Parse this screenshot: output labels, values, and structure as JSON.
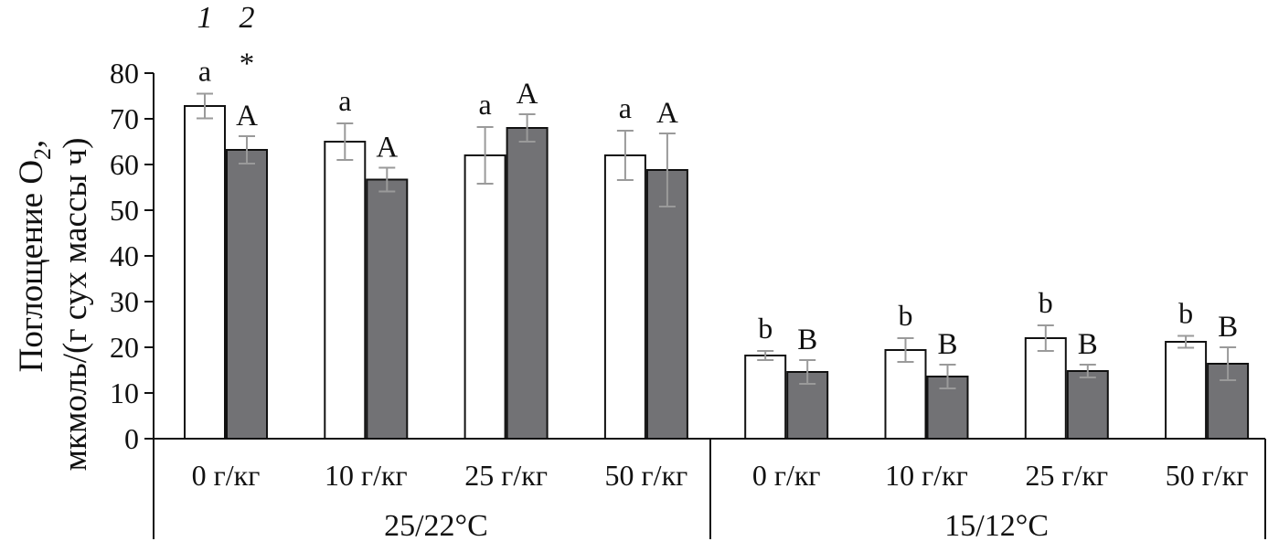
{
  "chart_data": {
    "type": "bar",
    "ylabel_line1_prefix": "Поглощение O",
    "ylabel_line1_sub": "2",
    "ylabel_line1_suffix": ",",
    "ylabel_line2": "мкмоль/(г сух массы ч)",
    "ylim": [
      0,
      80
    ],
    "yticks": [
      0,
      10,
      20,
      30,
      40,
      50,
      60,
      70,
      80
    ],
    "grid": false,
    "categories": [
      "0 г/кг",
      "10 г/кг",
      "25 г/кг",
      "50 г/кг",
      "0 г/кг",
      "10 г/кг",
      "25 г/кг",
      "50 г/кг"
    ],
    "groups": [
      {
        "label": "25/22°C",
        "categories": [
          0,
          1,
          2,
          3
        ]
      },
      {
        "label": "15/12°C",
        "categories": [
          4,
          5,
          6,
          7
        ]
      }
    ],
    "legend_labels": [
      "1",
      "2"
    ],
    "series": [
      {
        "legend_number": "1",
        "color": "#ffffff",
        "values": [
          72.8,
          65.0,
          62.0,
          62.0,
          18.2,
          19.4,
          22.0,
          21.2
        ],
        "errors": [
          2.7,
          4.0,
          6.2,
          5.4,
          1.0,
          2.6,
          2.8,
          1.3
        ],
        "annotations": [
          "a",
          "a",
          "a",
          "a",
          "b",
          "b",
          "b",
          "b"
        ]
      },
      {
        "legend_number": "2",
        "color": "#727275",
        "values": [
          63.2,
          56.7,
          68.0,
          58.8,
          14.6,
          13.6,
          14.8,
          16.4
        ],
        "errors": [
          3.0,
          2.6,
          3.0,
          8.0,
          2.6,
          2.6,
          1.4,
          3.6
        ],
        "annotations": [
          "A",
          "A",
          "A",
          "A",
          "B",
          "B",
          "B",
          "B"
        ]
      }
    ],
    "extra_annotations": [
      {
        "category": 0,
        "series": 1,
        "text": "*"
      }
    ],
    "errorbar_color": "#9a9a9a"
  }
}
